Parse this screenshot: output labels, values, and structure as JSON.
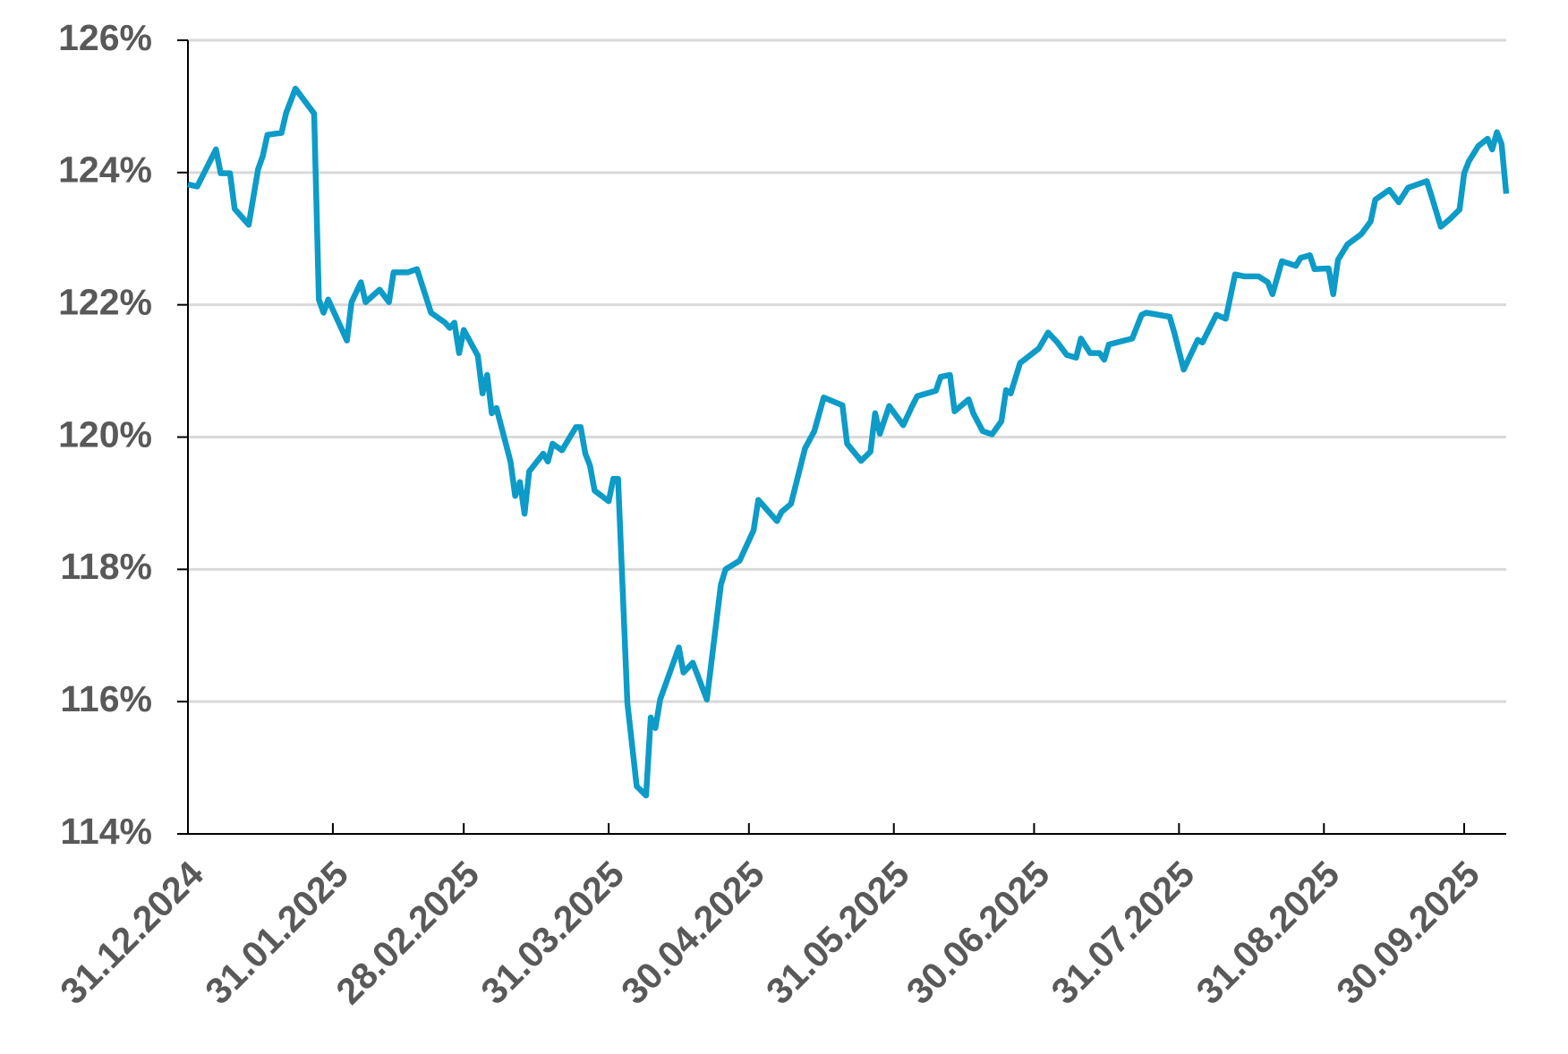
{
  "chart_data": {
    "type": "line",
    "color": "#0d9bc8",
    "grid": true,
    "x": [
      "31.12.2024",
      "02.01.2025",
      "06.01.2025",
      "07.01.2025",
      "09.01.2025",
      "10.01.2025",
      "13.01.2025",
      "15.01.2025",
      "16.01.2025",
      "17.01.2025",
      "20.01.2025",
      "21.01.2025",
      "23.01.2025",
      "27.01.2025",
      "28.01.2025",
      "29.01.2025",
      "30.01.2025",
      "03.02.2025",
      "04.02.2025",
      "06.02.2025",
      "07.02.2025",
      "10.02.2025",
      "12.02.2025",
      "13.02.2025",
      "16.02.2025",
      "18.02.2025",
      "21.02.2025",
      "24.02.2025",
      "25.02.2025",
      "26.02.2025",
      "27.02.2025",
      "28.02.2025",
      "03.03.2025",
      "04.03.2025",
      "05.03.2025",
      "06.03.2025",
      "07.03.2025",
      "10.03.2025",
      "11.03.2025",
      "12.03.2025",
      "13.03.2025",
      "14.03.2025",
      "17.03.2025",
      "18.03.2025",
      "19.03.2025",
      "21.03.2025",
      "24.03.2025",
      "25.03.2025",
      "26.03.2025",
      "27.03.2025",
      "28.03.2025",
      "31.03.2025",
      "01.04.2025",
      "02.04.2025",
      "04.04.2025",
      "06.04.2025",
      "08.04.2025",
      "09.04.2025",
      "10.04.2025",
      "11.04.2025",
      "14.04.2025",
      "15.04.2025",
      "16.04.2025",
      "18.04.2025",
      "21.04.2025",
      "24.04.2025",
      "25.04.2025",
      "28.04.2025",
      "01.05.2025",
      "02.05.2025",
      "06.05.2025",
      "07.05.2025",
      "09.05.2025",
      "12.05.2025",
      "14.05.2025",
      "16.05.2025",
      "20.05.2025",
      "21.05.2025",
      "24.05.2025",
      "26.05.2025",
      "27.05.2025",
      "28.05.2025",
      "30.05.2025",
      "02.06.2025",
      "04.06.2025",
      "05.06.2025",
      "09.06.2025",
      "10.06.2025",
      "12.06.2025",
      "13.06.2025",
      "16.06.2025",
      "17.06.2025",
      "19.06.2025",
      "21.06.2025",
      "23.06.2025",
      "24.06.2025",
      "25.06.2025",
      "27.06.2025",
      "01.07.2025",
      "03.07.2025",
      "05.07.2025",
      "07.07.2025",
      "09.07.2025",
      "10.07.2025",
      "12.07.2025",
      "14.07.2025",
      "15.07.2025",
      "16.07.2025",
      "21.07.2025",
      "23.07.2025",
      "24.07.2025",
      "29.07.2025",
      "30.07.2025",
      "01.08.2025",
      "04.08.2025",
      "05.08.2025",
      "08.08.2025",
      "10.08.2025",
      "12.08.2025",
      "14.08.2025",
      "17.08.2025",
      "19.08.2025",
      "20.08.2025",
      "22.08.2025",
      "25.08.2025",
      "26.08.2025",
      "28.08.2025",
      "29.08.2025",
      "01.09.2025",
      "02.09.2025",
      "03.09.2025",
      "05.09.2025",
      "08.09.2025",
      "10.09.2025",
      "11.09.2025",
      "14.09.2025",
      "16.09.2025",
      "18.09.2025",
      "22.09.2025",
      "23.09.2025",
      "25.09.2025",
      "27.09.2025",
      "29.09.2025",
      "30.09.2025",
      "01.10.2025",
      "03.10.2025",
      "05.10.2025",
      "06.10.2025",
      "07.10.2025",
      "08.10.2025",
      "09.10.2025"
    ],
    "values": [
      123.82,
      123.79,
      124.35,
      123.99,
      123.99,
      123.45,
      123.21,
      124.05,
      124.25,
      124.57,
      124.6,
      124.9,
      125.27,
      124.89,
      122.08,
      121.88,
      122.08,
      121.46,
      122.04,
      122.34,
      122.04,
      122.23,
      122.04,
      122.49,
      122.49,
      122.54,
      121.88,
      121.73,
      121.65,
      121.73,
      121.27,
      121.62,
      121.23,
      120.66,
      120.94,
      120.36,
      120.44,
      119.63,
      119.11,
      119.32,
      118.84,
      119.48,
      119.75,
      119.63,
      119.9,
      119.8,
      120.15,
      120.15,
      119.75,
      119.57,
      119.19,
      119.03,
      119.37,
      119.37,
      115.98,
      114.72,
      114.58,
      115.76,
      115.6,
      116.03,
      116.62,
      116.82,
      116.44,
      116.59,
      116.03,
      117.77,
      118.0,
      118.13,
      118.59,
      119.05,
      118.73,
      118.87,
      118.99,
      119.83,
      120.09,
      120.6,
      120.48,
      119.9,
      119.64,
      119.78,
      120.36,
      120.05,
      120.47,
      120.18,
      120.48,
      120.62,
      120.7,
      120.91,
      120.94,
      120.39,
      120.57,
      120.36,
      120.09,
      120.04,
      120.24,
      120.71,
      120.66,
      121.12,
      121.34,
      121.58,
      121.43,
      121.24,
      121.2,
      121.49,
      121.27,
      121.27,
      121.17,
      121.4,
      121.49,
      121.85,
      121.88,
      121.82,
      121.58,
      121.02,
      121.47,
      121.43,
      121.85,
      121.79,
      122.46,
      122.43,
      122.43,
      122.34,
      122.16,
      122.66,
      122.59,
      122.71,
      122.75,
      122.54,
      122.55,
      122.16,
      122.68,
      122.91,
      123.07,
      123.26,
      123.59,
      123.74,
      123.55,
      123.77,
      123.87,
      123.65,
      123.18,
      123.3,
      123.44,
      123.99,
      124.17,
      124.4,
      124.51,
      124.35,
      124.61,
      124.43,
      123.68
    ],
    "xlim": [
      "31.12.2024",
      "09.10.2025"
    ],
    "xticks": [
      "31.12.2024",
      "31.01.2025",
      "28.02.2025",
      "31.03.2025",
      "30.04.2025",
      "31.05.2025",
      "30.06.2025",
      "31.07.2025",
      "31.08.2025",
      "30.09.2025"
    ],
    "ylim": [
      114,
      126
    ],
    "yticks": [
      {
        "value": 114,
        "label": "114%"
      },
      {
        "value": 116,
        "label": "116%"
      },
      {
        "value": 118,
        "label": "118%"
      },
      {
        "value": 120,
        "label": "120%"
      },
      {
        "value": 122,
        "label": "122%"
      },
      {
        "value": 124,
        "label": "124%"
      },
      {
        "value": 126,
        "label": "126%"
      }
    ]
  }
}
